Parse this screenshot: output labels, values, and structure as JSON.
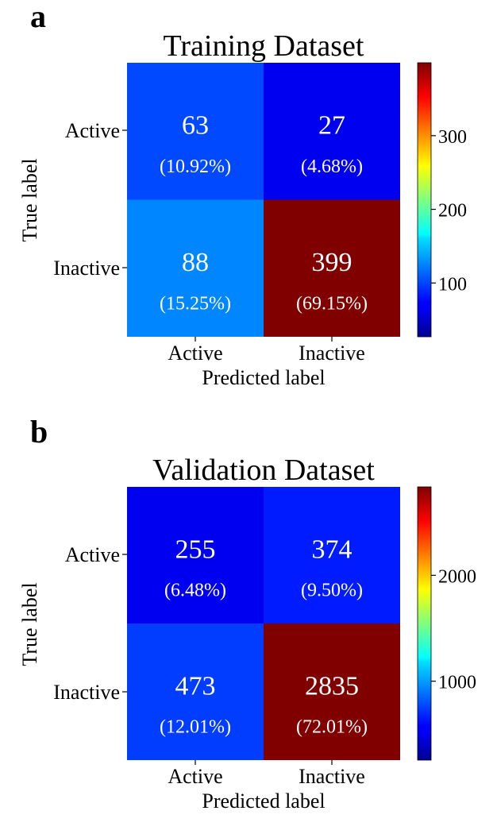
{
  "chart_data": [
    {
      "type": "heatmap",
      "panel": "a",
      "title": "Training Dataset",
      "xlabel": "Predicted label",
      "ylabel": "True label",
      "x_categories": [
        "Active",
        "Inactive"
      ],
      "y_categories": [
        "Active",
        "Inactive"
      ],
      "values": [
        [
          63,
          27
        ],
        [
          88,
          399
        ]
      ],
      "percentages": [
        [
          "(10.92%)",
          "(4.68%)"
        ],
        [
          "(15.25%)",
          "(69.15%)"
        ]
      ],
      "colorbar": {
        "min": 27,
        "max": 399,
        "ticks": [
          100,
          200,
          300
        ],
        "colormap": "jet"
      }
    },
    {
      "type": "heatmap",
      "panel": "b",
      "title": "Validation Dataset",
      "xlabel": "Predicted label",
      "ylabel": "True label",
      "x_categories": [
        "Active",
        "Inactive"
      ],
      "y_categories": [
        "Active",
        "Inactive"
      ],
      "values": [
        [
          255,
          374
        ],
        [
          473,
          2835
        ]
      ],
      "percentages": [
        [
          "(6.48%)",
          "(9.50%)"
        ],
        [
          "(12.01%)",
          "(72.01%)"
        ]
      ],
      "colorbar": {
        "min": 255,
        "max": 2835,
        "ticks": [
          1000,
          2000
        ],
        "colormap": "jet"
      }
    }
  ]
}
